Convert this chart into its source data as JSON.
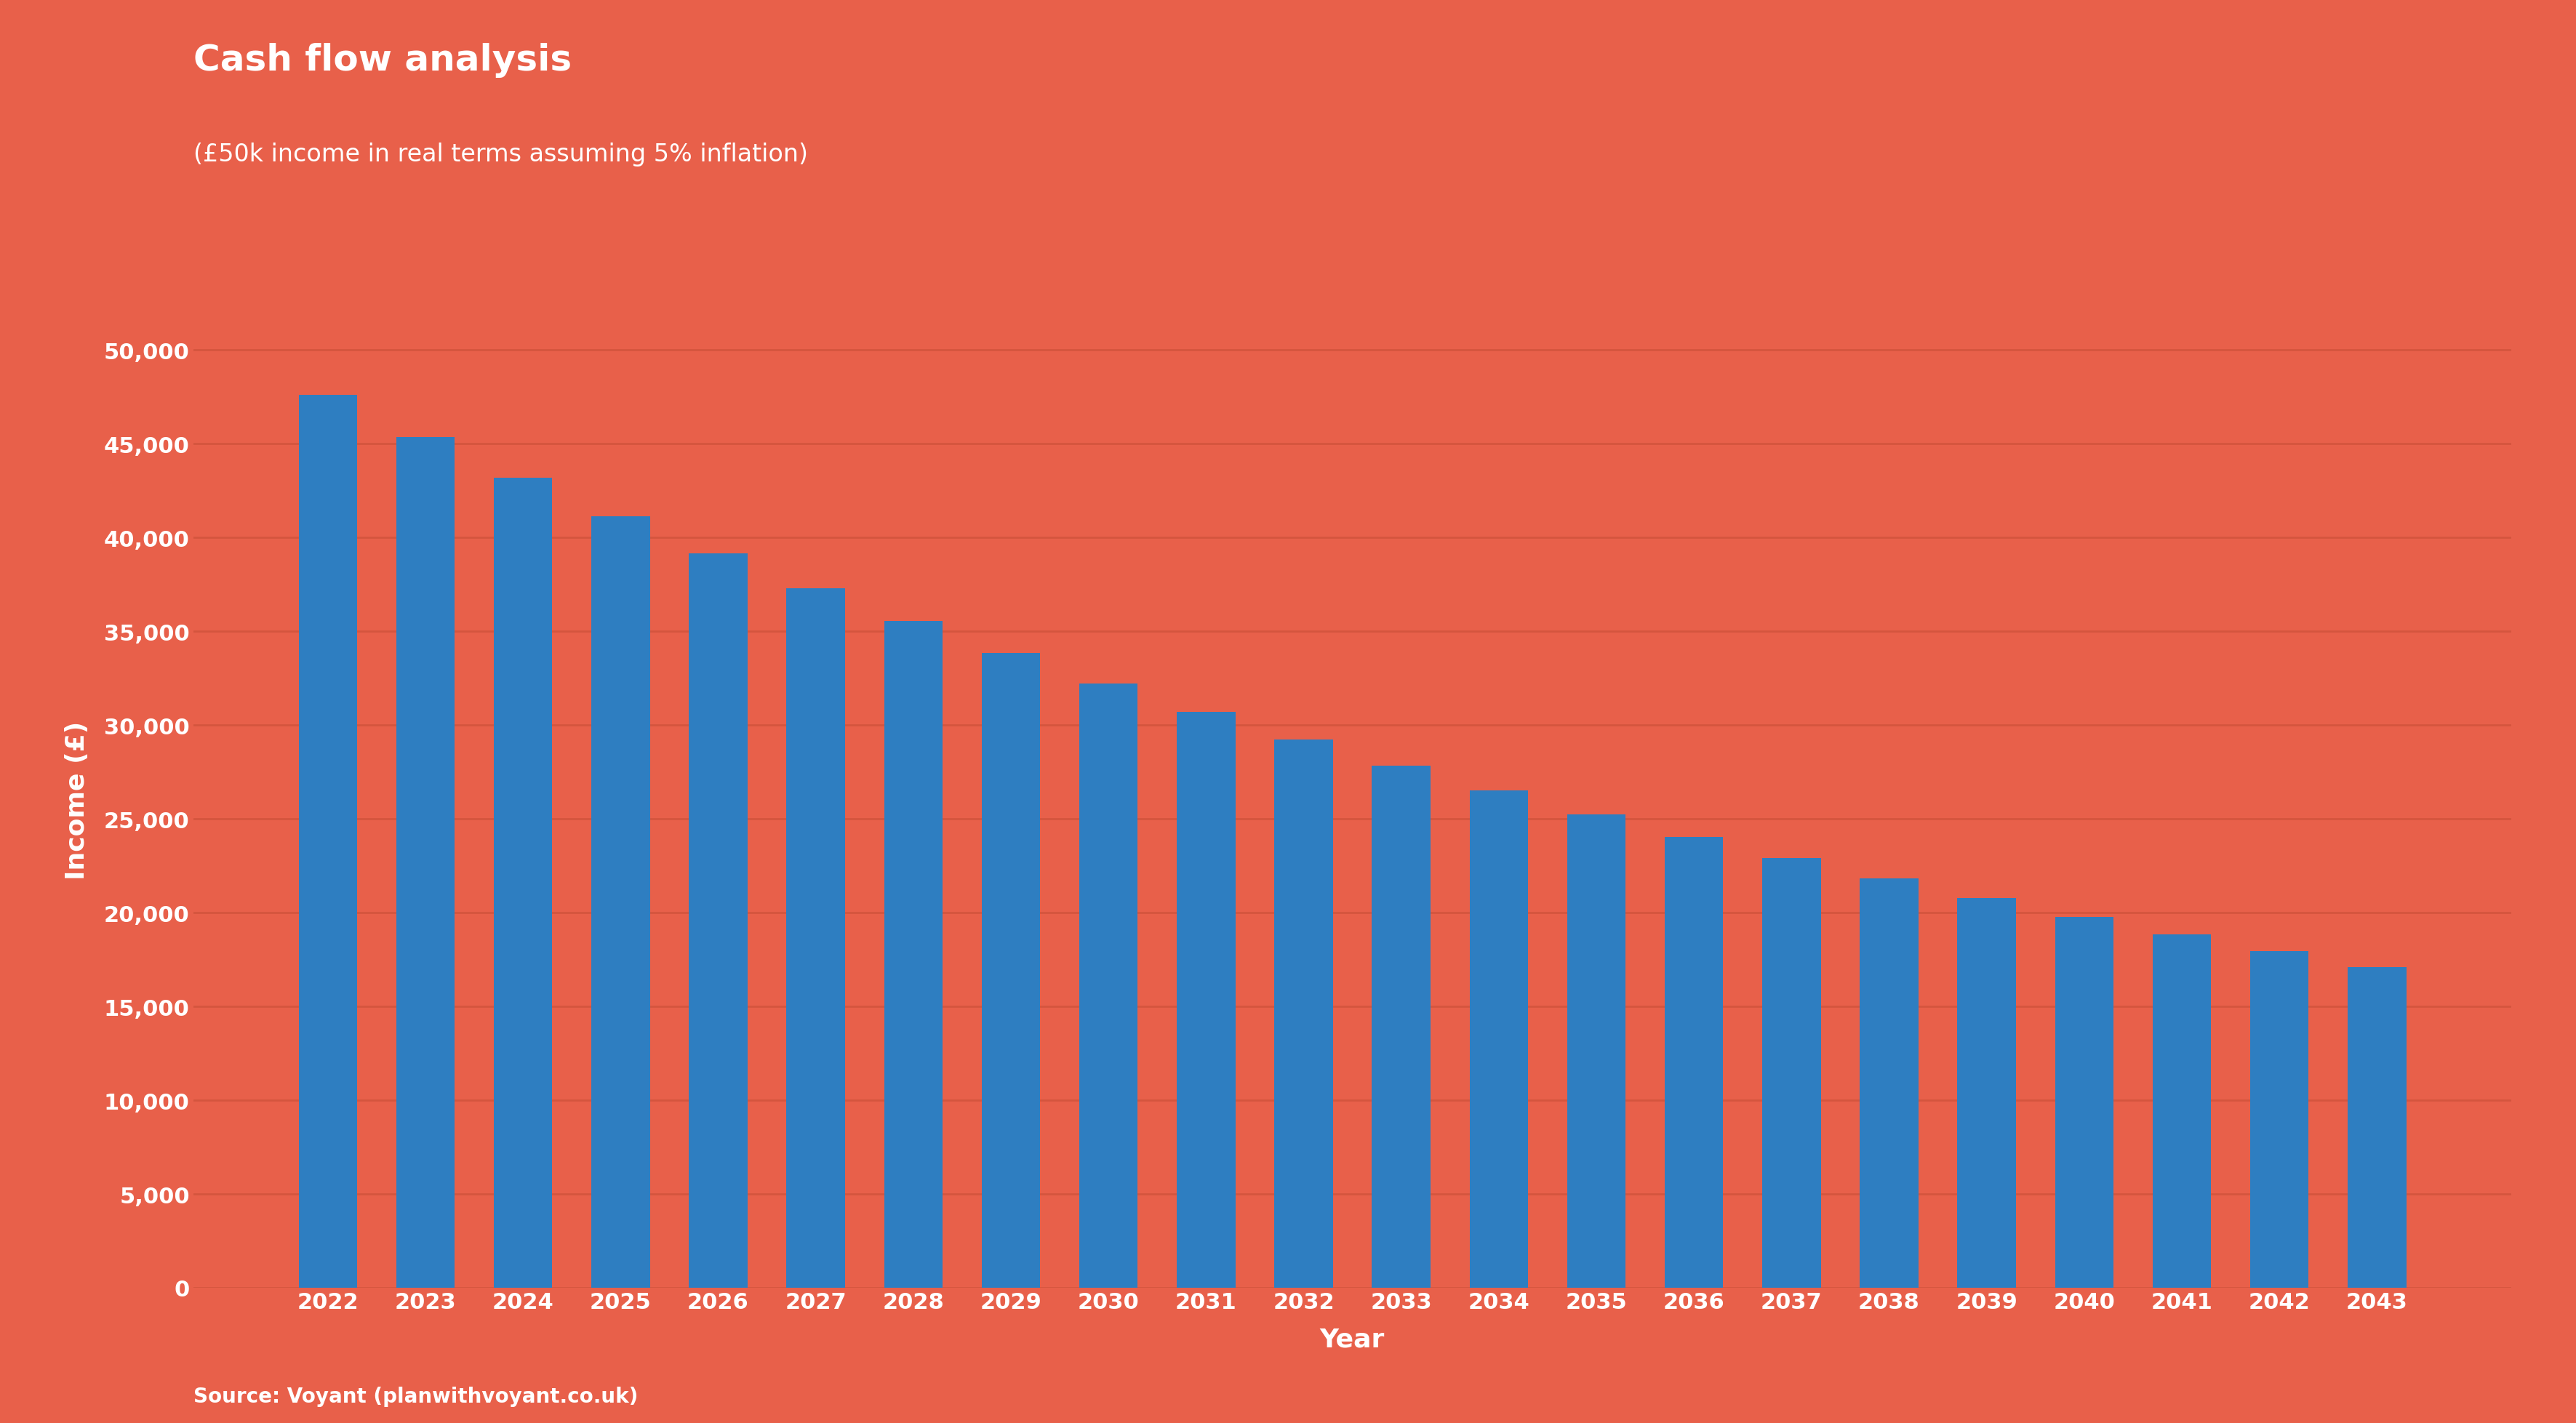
{
  "title": "Cash flow analysis",
  "subtitle": "(£50k income in real terms assuming 5% inflation)",
  "xlabel": "Year",
  "ylabel": "Income (£)",
  "source_text": "Source: Voyant (planwithvoyant.co.uk)",
  "background_color": "#E8604A",
  "bar_color": "#2E7EC1",
  "grid_color": "#D4553E",
  "text_color": "#FFFFFF",
  "years": [
    2022,
    2023,
    2024,
    2025,
    2026,
    2027,
    2028,
    2029,
    2030,
    2031,
    2032,
    2033,
    2034,
    2035,
    2036,
    2037,
    2038,
    2039,
    2040,
    2041,
    2042,
    2043
  ],
  "values": [
    47619,
    45352,
    43192,
    41135,
    39176,
    37311,
    35534,
    33842,
    32230,
    30695,
    29234,
    27842,
    26516,
    25253,
    24050,
    22905,
    21814,
    20776,
    19786,
    18844,
    17947,
    17093
  ],
  "ylim": [
    0,
    52000
  ],
  "yticks": [
    0,
    5000,
    10000,
    15000,
    20000,
    25000,
    30000,
    35000,
    40000,
    45000,
    50000
  ],
  "title_fontsize": 36,
  "subtitle_fontsize": 24,
  "axis_label_fontsize": 26,
  "tick_fontsize": 22,
  "source_fontsize": 20,
  "bar_width": 0.6
}
